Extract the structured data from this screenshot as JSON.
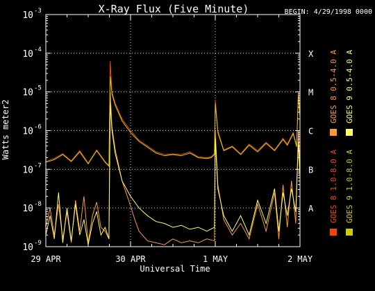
{
  "chart_data": {
    "type": "line",
    "title": "X-Ray Flux (Five Minute)",
    "begin_label": "BEGIN: 4/29/1998 0000",
    "xlabel": "Universal Time",
    "ylabel": "Watts meter2",
    "y_scale": "log",
    "ylim_exp": [
      -9,
      -3
    ],
    "y_ticks": [
      {
        "base": "10",
        "exp": "-9"
      },
      {
        "base": "10",
        "exp": "-8"
      },
      {
        "base": "10",
        "exp": "-7"
      },
      {
        "base": "10",
        "exp": "-6"
      },
      {
        "base": "10",
        "exp": "-5"
      },
      {
        "base": "10",
        "exp": "-4"
      },
      {
        "base": "10",
        "exp": "-3"
      }
    ],
    "class_labels": [
      {
        "label": "A",
        "exp": -8
      },
      {
        "label": "B",
        "exp": -7
      },
      {
        "label": "C",
        "exp": -6
      },
      {
        "label": "M",
        "exp": -5
      },
      {
        "label": "X",
        "exp": -4
      }
    ],
    "xlim_days": [
      0,
      3
    ],
    "x_ticks": [
      {
        "label": "29 APR",
        "day": 0
      },
      {
        "label": "30 APR",
        "day": 1
      },
      {
        "label": "1 MAY",
        "day": 2
      },
      {
        "label": "2 MAY",
        "day": 3
      }
    ],
    "grid": true,
    "legend_position": "right",
    "series": [
      {
        "name": "GOES 8 1.0-8.0 A",
        "color": "#ff4400",
        "points": [
          [
            0,
            -6.8
          ],
          [
            0.1,
            -6.72
          ],
          [
            0.2,
            -6.6
          ],
          [
            0.3,
            -6.78
          ],
          [
            0.4,
            -6.52
          ],
          [
            0.5,
            -6.84
          ],
          [
            0.6,
            -6.5
          ],
          [
            0.7,
            -6.8
          ],
          [
            0.745,
            -6.9
          ],
          [
            0.76,
            -4.2
          ],
          [
            0.78,
            -5.0
          ],
          [
            0.82,
            -5.3
          ],
          [
            0.9,
            -5.7
          ],
          [
            1.0,
            -6.0
          ],
          [
            1.1,
            -6.25
          ],
          [
            1.2,
            -6.4
          ],
          [
            1.3,
            -6.55
          ],
          [
            1.4,
            -6.62
          ],
          [
            1.5,
            -6.6
          ],
          [
            1.6,
            -6.62
          ],
          [
            1.7,
            -6.55
          ],
          [
            1.8,
            -6.68
          ],
          [
            1.9,
            -6.7
          ],
          [
            1.95,
            -6.68
          ],
          [
            1.99,
            -6.6
          ],
          [
            2.0,
            -5.2
          ],
          [
            2.03,
            -6.0
          ],
          [
            2.1,
            -6.5
          ],
          [
            2.2,
            -6.4
          ],
          [
            2.3,
            -6.6
          ],
          [
            2.4,
            -6.35
          ],
          [
            2.5,
            -6.52
          ],
          [
            2.6,
            -6.3
          ],
          [
            2.7,
            -6.5
          ],
          [
            2.8,
            -6.2
          ],
          [
            2.85,
            -6.35
          ],
          [
            2.92,
            -6.05
          ],
          [
            2.96,
            -6.4
          ],
          [
            2.98,
            -5.0
          ],
          [
            3.0,
            -5.6
          ]
        ]
      },
      {
        "name": "GOES 8 0.5-4.0 A",
        "color": "#ff9933",
        "points": [
          [
            0,
            -8.5
          ],
          [
            0.05,
            -8.0
          ],
          [
            0.1,
            -8.7
          ],
          [
            0.15,
            -7.9
          ],
          [
            0.2,
            -8.8
          ],
          [
            0.25,
            -8.1
          ],
          [
            0.3,
            -8.9
          ],
          [
            0.35,
            -7.8
          ],
          [
            0.4,
            -8.6
          ],
          [
            0.45,
            -7.7
          ],
          [
            0.5,
            -8.9
          ],
          [
            0.55,
            -8.2
          ],
          [
            0.6,
            -7.85
          ],
          [
            0.65,
            -8.5
          ],
          [
            0.7,
            -8.6
          ],
          [
            0.745,
            -8.8
          ],
          [
            0.76,
            -5.0
          ],
          [
            0.78,
            -5.9
          ],
          [
            0.82,
            -6.5
          ],
          [
            0.9,
            -7.3
          ],
          [
            1.0,
            -7.95
          ],
          [
            1.05,
            -8.3
          ],
          [
            1.1,
            -8.6
          ],
          [
            1.2,
            -8.85
          ],
          [
            1.3,
            -8.9
          ],
          [
            1.4,
            -8.95
          ],
          [
            1.5,
            -8.8
          ],
          [
            1.6,
            -8.9
          ],
          [
            1.7,
            -8.85
          ],
          [
            1.8,
            -8.9
          ],
          [
            1.9,
            -8.8
          ],
          [
            1.99,
            -8.85
          ],
          [
            2.0,
            -6.0
          ],
          [
            2.03,
            -7.4
          ],
          [
            2.1,
            -8.3
          ],
          [
            2.2,
            -8.7
          ],
          [
            2.3,
            -8.4
          ],
          [
            2.4,
            -8.8
          ],
          [
            2.5,
            -7.9
          ],
          [
            2.6,
            -8.6
          ],
          [
            2.7,
            -7.6
          ],
          [
            2.75,
            -8.8
          ],
          [
            2.8,
            -7.4
          ],
          [
            2.85,
            -8.5
          ],
          [
            2.9,
            -7.3
          ],
          [
            2.95,
            -8.4
          ],
          [
            2.98,
            -6.0
          ],
          [
            3.0,
            -7.0
          ]
        ]
      },
      {
        "name": "GOES 9 1.0-8.0 A",
        "color": "#cccc00",
        "points": [
          [
            0,
            -6.82
          ],
          [
            0.1,
            -6.75
          ],
          [
            0.2,
            -6.62
          ],
          [
            0.3,
            -6.8
          ],
          [
            0.4,
            -6.55
          ],
          [
            0.5,
            -6.86
          ],
          [
            0.6,
            -6.52
          ],
          [
            0.7,
            -6.82
          ],
          [
            0.745,
            -6.92
          ],
          [
            0.76,
            -4.6
          ],
          [
            0.78,
            -5.05
          ],
          [
            0.82,
            -5.35
          ],
          [
            0.9,
            -5.75
          ],
          [
            1.0,
            -6.05
          ],
          [
            1.1,
            -6.28
          ],
          [
            1.2,
            -6.43
          ],
          [
            1.3,
            -6.58
          ],
          [
            1.4,
            -6.65
          ],
          [
            1.5,
            -6.62
          ],
          [
            1.6,
            -6.65
          ],
          [
            1.7,
            -6.58
          ],
          [
            1.8,
            -6.7
          ],
          [
            1.9,
            -6.72
          ],
          [
            1.95,
            -6.7
          ],
          [
            1.99,
            -6.62
          ],
          [
            2.0,
            -5.3
          ],
          [
            2.03,
            -6.05
          ],
          [
            2.1,
            -6.52
          ],
          [
            2.2,
            -6.42
          ],
          [
            2.3,
            -6.62
          ],
          [
            2.4,
            -6.38
          ],
          [
            2.5,
            -6.55
          ],
          [
            2.6,
            -6.33
          ],
          [
            2.7,
            -6.52
          ],
          [
            2.8,
            -6.23
          ],
          [
            2.85,
            -6.38
          ],
          [
            2.92,
            -6.08
          ],
          [
            2.96,
            -6.42
          ],
          [
            2.98,
            -5.1
          ],
          [
            3.0,
            -5.65
          ]
        ]
      },
      {
        "name": "GOES 9 0.5-4.0 A",
        "color": "#ffff66",
        "points": [
          [
            0,
            -8.7
          ],
          [
            0.05,
            -8.2
          ],
          [
            0.1,
            -8.8
          ],
          [
            0.15,
            -7.6
          ],
          [
            0.2,
            -8.9
          ],
          [
            0.25,
            -8.0
          ],
          [
            0.3,
            -8.85
          ],
          [
            0.35,
            -7.9
          ],
          [
            0.4,
            -8.7
          ],
          [
            0.45,
            -8.3
          ],
          [
            0.5,
            -8.95
          ],
          [
            0.55,
            -8.4
          ],
          [
            0.6,
            -8.1
          ],
          [
            0.65,
            -8.7
          ],
          [
            0.7,
            -8.5
          ],
          [
            0.745,
            -8.8
          ],
          [
            0.76,
            -5.3
          ],
          [
            0.78,
            -6.0
          ],
          [
            0.82,
            -6.6
          ],
          [
            0.9,
            -7.3
          ],
          [
            1.0,
            -7.7
          ],
          [
            1.1,
            -8.0
          ],
          [
            1.2,
            -8.2
          ],
          [
            1.3,
            -8.35
          ],
          [
            1.4,
            -8.4
          ],
          [
            1.5,
            -8.5
          ],
          [
            1.6,
            -8.45
          ],
          [
            1.7,
            -8.55
          ],
          [
            1.8,
            -8.5
          ],
          [
            1.9,
            -8.6
          ],
          [
            1.99,
            -8.5
          ],
          [
            2.0,
            -6.2
          ],
          [
            2.03,
            -7.5
          ],
          [
            2.1,
            -8.2
          ],
          [
            2.2,
            -8.6
          ],
          [
            2.3,
            -8.2
          ],
          [
            2.4,
            -8.7
          ],
          [
            2.5,
            -7.8
          ],
          [
            2.6,
            -8.4
          ],
          [
            2.7,
            -7.5
          ],
          [
            2.75,
            -8.6
          ],
          [
            2.8,
            -7.6
          ],
          [
            2.85,
            -8.2
          ],
          [
            2.9,
            -7.5
          ],
          [
            2.95,
            -8.1
          ],
          [
            2.98,
            -6.3
          ],
          [
            3.0,
            -7.2
          ]
        ]
      }
    ]
  }
}
